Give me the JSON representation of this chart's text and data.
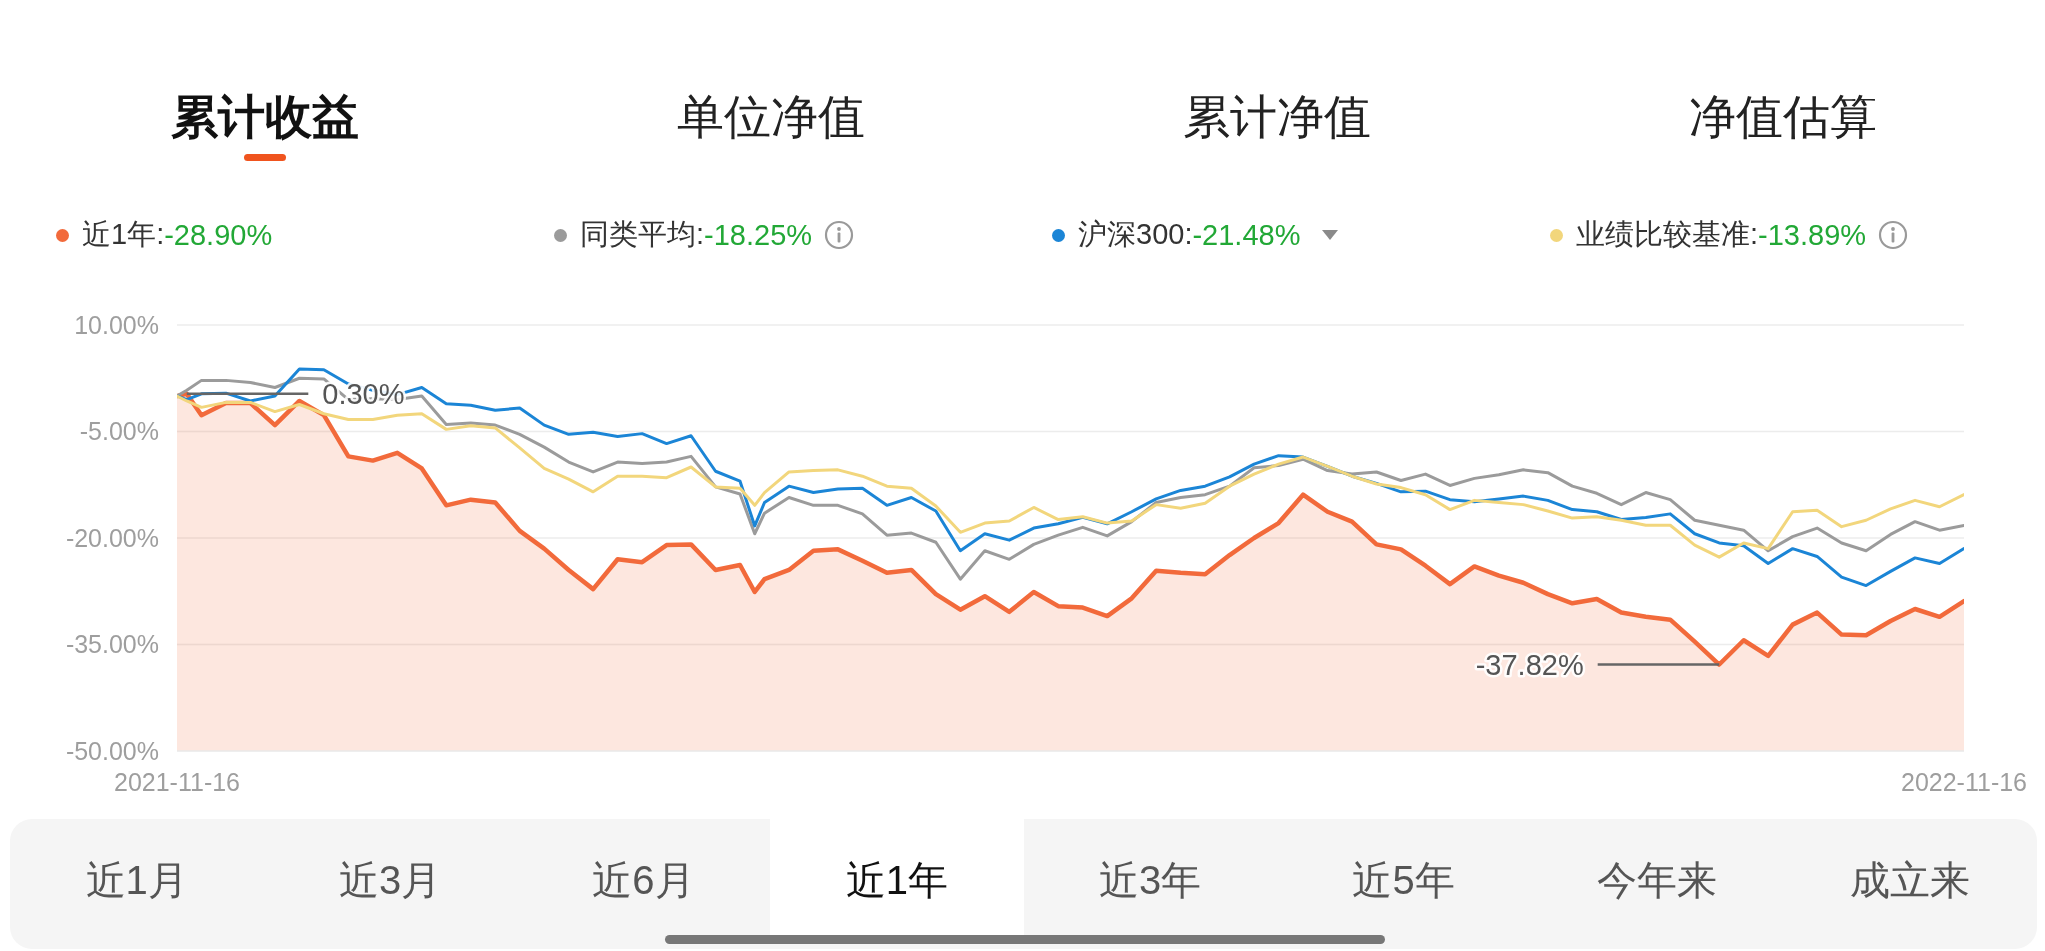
{
  "chart_data": {
    "type": "line",
    "title": "累计收益",
    "x": [
      "2021-11-16",
      "2021-11-18",
      "2021-11-21",
      "2021-11-26",
      "2021-12-01",
      "2021-12-06",
      "2021-12-11",
      "2021-12-16",
      "2021-12-21",
      "2021-12-26",
      "2021-12-31",
      "2022-01-05",
      "2022-01-10",
      "2022-01-15",
      "2022-01-20",
      "2022-01-25",
      "2022-01-30",
      "2022-02-04",
      "2022-02-09",
      "2022-02-14",
      "2022-02-19",
      "2022-02-24",
      "2022-03-01",
      "2022-03-06",
      "2022-03-11",
      "2022-03-14",
      "2022-03-16",
      "2022-03-21",
      "2022-03-26",
      "2022-03-31",
      "2022-04-05",
      "2022-04-10",
      "2022-04-15",
      "2022-04-20",
      "2022-04-25",
      "2022-04-30",
      "2022-05-05",
      "2022-05-10",
      "2022-05-15",
      "2022-05-20",
      "2022-05-25",
      "2022-05-30",
      "2022-06-04",
      "2022-06-09",
      "2022-06-14",
      "2022-06-19",
      "2022-06-24",
      "2022-06-29",
      "2022-07-04",
      "2022-07-09",
      "2022-07-14",
      "2022-07-19",
      "2022-07-24",
      "2022-07-29",
      "2022-08-03",
      "2022-08-08",
      "2022-08-13",
      "2022-08-18",
      "2022-08-23",
      "2022-08-28",
      "2022-09-02",
      "2022-09-07",
      "2022-09-12",
      "2022-09-17",
      "2022-09-22",
      "2022-09-27",
      "2022-10-02",
      "2022-10-07",
      "2022-10-12",
      "2022-10-17",
      "2022-10-22",
      "2022-10-27",
      "2022-11-01",
      "2022-11-06",
      "2022-11-11",
      "2022-11-16"
    ],
    "series": [
      {
        "name": "近1年:-28.90%",
        "color": "#f26a3b",
        "values": [
          0,
          0.3,
          -2.7,
          -1.0,
          -1.0,
          -4.1,
          -0.7,
          -2.7,
          -8.5,
          -9.1,
          -8.0,
          -10.2,
          -15.4,
          -14.6,
          -15.0,
          -19.0,
          -21.5,
          -24.5,
          -27.2,
          -23.0,
          -23.4,
          -21.0,
          -20.9,
          -24.5,
          -23.8,
          -27.6,
          -25.8,
          -24.5,
          -21.8,
          -21.6,
          -23.2,
          -24.9,
          -24.5,
          -27.9,
          -30.1,
          -28.2,
          -30.4,
          -27.6,
          -29.6,
          -29.8,
          -31.0,
          -28.5,
          -24.6,
          -24.9,
          -25.1,
          -22.4,
          -20.0,
          -17.9,
          -13.9,
          -16.3,
          -17.7,
          -20.9,
          -21.6,
          -23.9,
          -26.5,
          -24.0,
          -25.3,
          -26.3,
          -27.9,
          -29.2,
          -28.6,
          -30.5,
          -31.1,
          -31.5,
          -34.6,
          -37.82,
          -34.4,
          -36.6,
          -32.2,
          -30.5,
          -33.6,
          -33.7,
          -31.7,
          -30.0,
          -31.1,
          -28.9
        ],
        "lower": [
          -50,
          -50,
          -50,
          -50,
          -50,
          -50,
          -50,
          -50,
          -50,
          -50,
          -50,
          -50,
          -50,
          -50,
          -50,
          -50,
          -50,
          -50,
          -50,
          -50,
          -50,
          -50,
          -50,
          -50,
          -50,
          -50,
          -50,
          -50,
          -50,
          -50,
          -50,
          -50,
          -50,
          -50,
          -50,
          -50,
          -50,
          -50,
          -50,
          -50,
          -50,
          -50,
          -50,
          -50,
          -50,
          -50,
          -50,
          -50,
          -50,
          -50,
          -50,
          -50,
          -50,
          -50,
          -50,
          -50,
          -50,
          -50,
          -50,
          -50,
          -50,
          -50,
          -50,
          -50,
          -50,
          -50,
          -50,
          -50,
          -50,
          -50,
          -50,
          -50,
          -50,
          -50,
          -50,
          -50
        ],
        "upper": [
          0,
          0.3,
          -2.7,
          -1.0,
          -1.0,
          -4.1,
          -0.7,
          -2.7,
          -8.5,
          -9.1,
          -8.0,
          -10.2,
          -15.4,
          -14.6,
          -15.0,
          -19.0,
          -21.5,
          -24.5,
          -27.2,
          -23.0,
          -23.4,
          -21.0,
          -20.9,
          -24.5,
          -23.8,
          -27.6,
          -25.8,
          -24.5,
          -21.8,
          -21.6,
          -23.2,
          -24.9,
          -24.5,
          -27.9,
          -30.1,
          -28.2,
          -30.4,
          -27.6,
          -29.6,
          -29.8,
          -31.0,
          -28.5,
          -24.6,
          -24.9,
          -25.1,
          -22.4,
          -20.0,
          -17.9,
          -13.9,
          -16.3,
          -17.7,
          -20.9,
          -21.6,
          -23.9,
          -26.5,
          -24.0,
          -25.3,
          -26.3,
          -27.9,
          -29.2,
          -28.6,
          -30.5,
          -31.1,
          -31.5,
          -34.6,
          -37.82,
          -34.4,
          -36.6,
          -32.2,
          -30.5,
          -33.6,
          -33.7,
          -31.7,
          -30.0,
          -31.1,
          -28.9
        ]
      },
      {
        "name": "同类平均:-18.25%",
        "color": "#9b9b9b",
        "values": [
          0,
          0.8,
          2.2,
          2.2,
          1.9,
          1.2,
          2.5,
          2.4,
          -0.5,
          -0.4,
          -0.5,
          0.0,
          -4.0,
          -3.8,
          -4.1,
          -5.4,
          -7.2,
          -9.3,
          -10.7,
          -9.3,
          -9.5,
          -9.3,
          -8.5,
          -12.8,
          -13.8,
          -19.4,
          -16.5,
          -14.3,
          -15.4,
          -15.4,
          -16.6,
          -19.6,
          -19.3,
          -20.6,
          -25.8,
          -21.8,
          -23.0,
          -20.9,
          -19.6,
          -18.5,
          -19.7,
          -17.7,
          -15.0,
          -14.3,
          -13.9,
          -12.7,
          -10.1,
          -9.8,
          -8.9,
          -10.5,
          -11.0,
          -10.7,
          -11.9,
          -11.0,
          -12.6,
          -11.6,
          -11.1,
          -10.4,
          -10.8,
          -12.7,
          -13.7,
          -15.3,
          -13.6,
          -14.6,
          -17.5,
          -18.2,
          -18.9,
          -21.8,
          -19.8,
          -18.6,
          -20.7,
          -21.8,
          -19.5,
          -17.7,
          -18.9,
          -18.25
        ]
      },
      {
        "name": "沪深300:-21.48%",
        "color": "#1b85d6",
        "values": [
          0,
          -0.5,
          0.3,
          0.4,
          -0.7,
          0.0,
          3.8,
          3.7,
          1.7,
          0.8,
          0.2,
          1.2,
          -1.1,
          -1.3,
          -2.0,
          -1.7,
          -4.1,
          -5.4,
          -5.1,
          -5.7,
          -5.3,
          -6.7,
          -5.6,
          -10.6,
          -12.0,
          -18.3,
          -15.0,
          -12.7,
          -13.6,
          -13.1,
          -13.0,
          -15.4,
          -14.3,
          -16.2,
          -21.8,
          -19.4,
          -20.3,
          -18.6,
          -18.0,
          -17.1,
          -18.0,
          -16.3,
          -14.5,
          -13.3,
          -12.7,
          -11.4,
          -9.6,
          -8.4,
          -8.6,
          -9.9,
          -11.3,
          -12.3,
          -13.5,
          -13.4,
          -14.6,
          -14.9,
          -14.5,
          -14.1,
          -14.7,
          -16.0,
          -16.3,
          -17.4,
          -17.1,
          -16.6,
          -19.4,
          -20.7,
          -21.1,
          -23.6,
          -21.5,
          -22.6,
          -25.5,
          -26.7,
          -24.7,
          -22.8,
          -23.6,
          -21.48
        ]
      },
      {
        "name": "业绩比较基准:-13.89%",
        "color": "#f2d67c",
        "values": [
          0,
          -0.7,
          -1.6,
          -0.9,
          -0.9,
          -2.2,
          -1.2,
          -2.5,
          -3.3,
          -3.3,
          -2.7,
          -2.5,
          -4.7,
          -4.2,
          -4.5,
          -7.3,
          -10.2,
          -11.7,
          -13.5,
          -11.3,
          -11.3,
          -11.5,
          -10.0,
          -12.8,
          -13.0,
          -15.4,
          -13.6,
          -10.7,
          -10.5,
          -10.4,
          -11.3,
          -12.7,
          -13.0,
          -15.5,
          -19.2,
          -17.9,
          -17.6,
          -15.7,
          -17.4,
          -17.0,
          -17.9,
          -17.6,
          -15.3,
          -15.8,
          -15.1,
          -12.7,
          -11.0,
          -9.6,
          -8.6,
          -9.9,
          -11.3,
          -12.4,
          -12.9,
          -13.9,
          -16.0,
          -14.7,
          -15.0,
          -15.3,
          -16.2,
          -17.2,
          -17.0,
          -17.5,
          -18.2,
          -18.2,
          -21.0,
          -22.7,
          -20.7,
          -21.5,
          -16.3,
          -16.1,
          -18.4,
          -17.5,
          -15.9,
          -14.7,
          -15.6,
          -13.89
        ]
      }
    ],
    "xlim": [
      "2021-11-16",
      "2022-11-16"
    ],
    "xticks": [
      "2021-11-16",
      "2022-11-16"
    ],
    "ylim": [
      -50,
      10
    ],
    "yticks": [
      {
        "value": 10,
        "label": "10.00%"
      },
      {
        "value": -5,
        "label": "-5.00%"
      },
      {
        "value": -20,
        "label": "-20.00%"
      },
      {
        "value": -35,
        "label": "-35.00%"
      },
      {
        "value": -50,
        "label": "-50.00%"
      }
    ],
    "grid": "y",
    "legend": "top",
    "line_style": "solid",
    "annotations": [
      "单位净值",
      "累计净值",
      "净值估算",
      "近1月",
      "近3月",
      "近6月",
      "近1年",
      "近3年",
      "近5年",
      "今年来",
      "成立来",
      {
        "text": "0.30%",
        "x": "2021-11-18",
        "y": 0.3
      },
      {
        "text": "-37.82%",
        "x": "2022-09-27",
        "y": -37.82
      }
    ]
  }
}
